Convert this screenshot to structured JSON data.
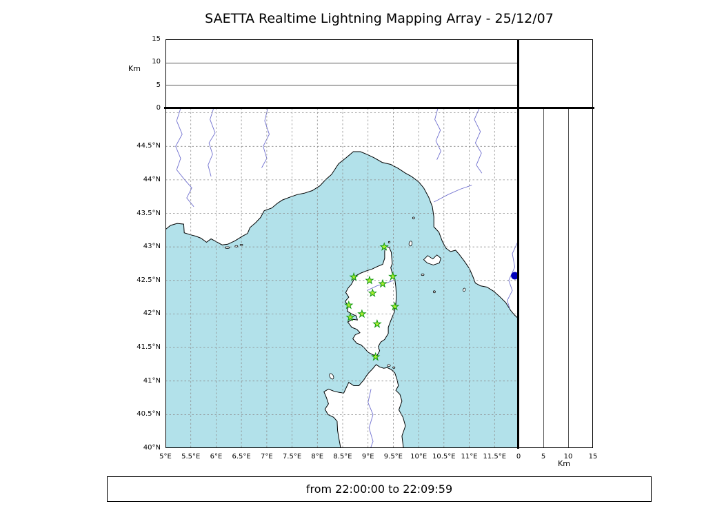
{
  "title": "SAETTA Realtime Lightning Mapping Array - 25/12/07",
  "footer": {
    "time_range": "from 22:00:00 to 22:09:59"
  },
  "altitude_panel": {
    "axis_label": "Km",
    "range_km": [
      0,
      15
    ],
    "gridlines_km": [
      5,
      10
    ],
    "ticks": [
      {
        "label": "15",
        "value": 15
      },
      {
        "label": "10",
        "value": 10
      },
      {
        "label": "5",
        "value": 5
      },
      {
        "label": "0",
        "value": 0
      }
    ]
  },
  "right_panel": {
    "axis_label": "Km",
    "range_km": [
      0,
      15
    ],
    "gridlines_km": [
      5,
      10
    ],
    "ticks": [
      {
        "label": "0",
        "value": 0
      },
      {
        "label": "5",
        "value": 5
      },
      {
        "label": "10",
        "value": 10
      },
      {
        "label": "15",
        "value": 15
      }
    ]
  },
  "map": {
    "lon_range": [
      5,
      11.973
    ],
    "lat_range": [
      40,
      45.068
    ],
    "grid_step_deg": 0.5,
    "colors": {
      "sea": "#b2e1ea",
      "land": "#ffffff",
      "coast": "#000000",
      "river": "#7070cf",
      "grid": "#8c8c8c",
      "station_fill": "#aaee33",
      "station_stroke": "#119911",
      "event": "#0000bb"
    },
    "lon_ticks": [
      {
        "label": "5°E",
        "value": 5
      },
      {
        "label": "5.5°E",
        "value": 5.5
      },
      {
        "label": "6°E",
        "value": 6
      },
      {
        "label": "6.5°E",
        "value": 6.5
      },
      {
        "label": "7°E",
        "value": 7
      },
      {
        "label": "7.5°E",
        "value": 7.5
      },
      {
        "label": "8°E",
        "value": 8
      },
      {
        "label": "8.5°E",
        "value": 8.5
      },
      {
        "label": "9°E",
        "value": 9
      },
      {
        "label": "9.5°E",
        "value": 9.5
      },
      {
        "label": "10°E",
        "value": 10
      },
      {
        "label": "10.5°E",
        "value": 10.5
      },
      {
        "label": "11°E",
        "value": 11
      },
      {
        "label": "11.5°E",
        "value": 11.5
      }
    ],
    "lat_ticks": [
      {
        "label": "44.5°N",
        "value": 44.5
      },
      {
        "label": "44°N",
        "value": 44
      },
      {
        "label": "43.5°N",
        "value": 43.5
      },
      {
        "label": "43°N",
        "value": 43
      },
      {
        "label": "42.5°N",
        "value": 42.5
      },
      {
        "label": "42°N",
        "value": 42
      },
      {
        "label": "41.5°N",
        "value": 41.5
      },
      {
        "label": "41°N",
        "value": 41
      },
      {
        "label": "40.5°N",
        "value": 40.5
      },
      {
        "label": "40°N",
        "value": 40
      }
    ],
    "stations": [
      {
        "lon": 9.32,
        "lat": 43.0
      },
      {
        "lon": 8.72,
        "lat": 42.55
      },
      {
        "lon": 9.03,
        "lat": 42.5
      },
      {
        "lon": 9.29,
        "lat": 42.45
      },
      {
        "lon": 9.49,
        "lat": 42.56
      },
      {
        "lon": 9.09,
        "lat": 42.31
      },
      {
        "lon": 8.62,
        "lat": 42.13
      },
      {
        "lon": 9.53,
        "lat": 42.11
      },
      {
        "lon": 8.88,
        "lat": 42.0
      },
      {
        "lon": 8.65,
        "lat": 41.95
      },
      {
        "lon": 9.18,
        "lat": 41.85
      },
      {
        "lon": 9.15,
        "lat": 41.36
      }
    ],
    "events": [
      {
        "lon": 11.9,
        "lat": 42.57
      }
    ]
  }
}
